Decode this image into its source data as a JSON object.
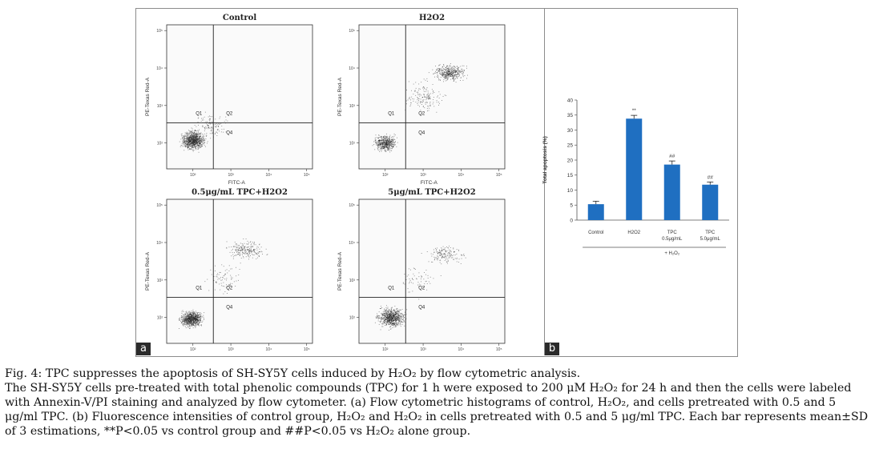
{
  "figure": {
    "panel_a_tag": "a",
    "panel_b_tag": "b",
    "flow_plots": [
      {
        "title": "Control",
        "x_axis": "FITC-A",
        "y_axis": "PE-Texas Red-A",
        "quadrants": [
          "Q1",
          "Q2",
          "Q4"
        ]
      },
      {
        "title": "H2O2",
        "x_axis": "FITC-A",
        "y_axis": "PE-Texas Red-A",
        "quadrants": [
          "Q1",
          "Q2",
          "Q4"
        ]
      },
      {
        "title": "0.5μg/mL TPC+H2O2",
        "x_axis": "FITC-A",
        "y_axis": "PE-Texas Red-A",
        "quadrants": [
          "Q1",
          "Q2",
          "Q4"
        ]
      },
      {
        "title": "5μg/mL TPC+H2O2",
        "x_axis": "FITC-A",
        "y_axis": "PE-Texas Red-A",
        "quadrants": [
          "Q1",
          "Q2",
          "Q4"
        ]
      }
    ],
    "flow_tick_labels": [
      "10²",
      "10³",
      "10⁴",
      "10⁵"
    ]
  },
  "chart_data": {
    "type": "bar",
    "categories": [
      "Control",
      "H2O2",
      "TPC 0.5μg/mL",
      "TPC 5.0μg/mL"
    ],
    "category_lines": [
      [
        "Control"
      ],
      [
        "H2O2"
      ],
      [
        "TPC",
        "0.5μg/mL"
      ],
      [
        "TPC",
        "5.0μg/mL"
      ]
    ],
    "values": [
      5.3,
      33.8,
      18.5,
      11.8
    ],
    "errors": [
      1.0,
      1.1,
      1.2,
      0.9
    ],
    "significance": [
      "",
      "**",
      "##",
      "##"
    ],
    "ylabel": "Total apoptosis (%)",
    "ylim": [
      0,
      40
    ],
    "yticks": [
      0,
      5,
      10,
      15,
      20,
      25,
      30,
      35,
      40
    ],
    "group_label": "+ H₂O₂",
    "bar_color": "#1f6fc1",
    "grid": false
  },
  "caption": {
    "title": "Fig. 4: TPC suppresses the apoptosis of SH-SY5Y cells induced by H₂O₂ by flow cytometric analysis.",
    "body": "The SH-SY5Y cells pre-treated with total phenolic compounds (TPC) for 1 h were exposed to 200 μM H₂O₂ for 24 h and then the cells were labeled with Annexin-V/PI staining and analyzed by flow cytometer. (a) Flow cytometric histograms of control, H₂O₂, and cells pretreated with 0.5 and 5 μg/ml TPC. (b) Fluorescence intensities of control group, H₂O₂ and H₂O₂ in cells pretreated with 0.5 and 5 μg/ml TPC. Each bar represents mean±SD of 3 estimations, **P<0.05 vs control group and ##P<0.05 vs H₂O₂ alone group."
  }
}
